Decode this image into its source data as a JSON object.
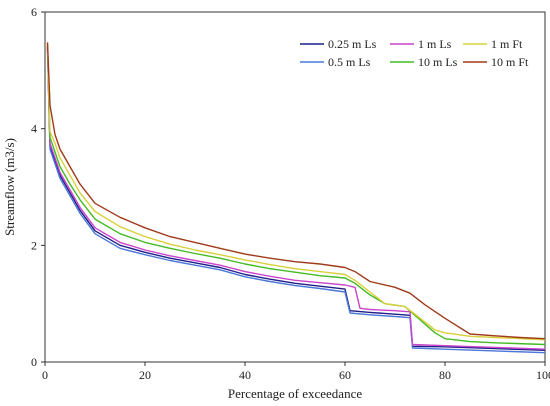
{
  "chart_data": {
    "type": "line",
    "title": "",
    "xlabel": "Percentage of exceedance",
    "ylabel": "Streamflow (m3/s)",
    "xlim": [
      0,
      100
    ],
    "ylim": [
      0,
      6
    ],
    "xticks": [
      0,
      20,
      40,
      60,
      80,
      100
    ],
    "yticks": [
      0,
      2,
      4,
      6
    ],
    "x_tick_labels": [
      "0",
      "20",
      "40",
      "60",
      "80",
      "100"
    ],
    "y_tick_labels": [
      "0",
      "2",
      "4",
      "6"
    ],
    "grid": false,
    "legend_position": "top-right",
    "series": [
      {
        "name": "0.25 m Ls",
        "color": "#1f1f8a",
        "points": [
          [
            0.5,
            5.4
          ],
          [
            1,
            3.7
          ],
          [
            2,
            3.45
          ],
          [
            3,
            3.2
          ],
          [
            5,
            2.9
          ],
          [
            7,
            2.6
          ],
          [
            10,
            2.25
          ],
          [
            15,
            2.0
          ],
          [
            20,
            1.88
          ],
          [
            25,
            1.78
          ],
          [
            30,
            1.7
          ],
          [
            35,
            1.62
          ],
          [
            40,
            1.5
          ],
          [
            45,
            1.42
          ],
          [
            50,
            1.35
          ],
          [
            55,
            1.3
          ],
          [
            60,
            1.25
          ],
          [
            61,
            0.88
          ],
          [
            65,
            0.85
          ],
          [
            70,
            0.82
          ],
          [
            73,
            0.8
          ],
          [
            73.5,
            0.27
          ],
          [
            80,
            0.26
          ],
          [
            90,
            0.23
          ],
          [
            100,
            0.2
          ]
        ]
      },
      {
        "name": "0.5 m Ls",
        "color": "#4a78d8",
        "points": [
          [
            0.5,
            5.35
          ],
          [
            1,
            3.65
          ],
          [
            2,
            3.4
          ],
          [
            3,
            3.15
          ],
          [
            5,
            2.85
          ],
          [
            7,
            2.55
          ],
          [
            10,
            2.2
          ],
          [
            15,
            1.95
          ],
          [
            20,
            1.84
          ],
          [
            25,
            1.74
          ],
          [
            30,
            1.66
          ],
          [
            35,
            1.58
          ],
          [
            40,
            1.46
          ],
          [
            45,
            1.38
          ],
          [
            50,
            1.31
          ],
          [
            55,
            1.26
          ],
          [
            60,
            1.2
          ],
          [
            61,
            0.84
          ],
          [
            65,
            0.81
          ],
          [
            70,
            0.78
          ],
          [
            73,
            0.76
          ],
          [
            73.5,
            0.24
          ],
          [
            80,
            0.22
          ],
          [
            90,
            0.19
          ],
          [
            100,
            0.16
          ]
        ]
      },
      {
        "name": "1 m Ls",
        "color": "#cc44cc",
        "points": [
          [
            0.5,
            5.4
          ],
          [
            1,
            3.75
          ],
          [
            2,
            3.5
          ],
          [
            3,
            3.25
          ],
          [
            5,
            2.95
          ],
          [
            7,
            2.65
          ],
          [
            10,
            2.3
          ],
          [
            15,
            2.05
          ],
          [
            20,
            1.92
          ],
          [
            25,
            1.82
          ],
          [
            30,
            1.74
          ],
          [
            35,
            1.66
          ],
          [
            40,
            1.55
          ],
          [
            45,
            1.47
          ],
          [
            50,
            1.4
          ],
          [
            55,
            1.36
          ],
          [
            60,
            1.32
          ],
          [
            62,
            1.28
          ],
          [
            63,
            0.92
          ],
          [
            65,
            0.9
          ],
          [
            70,
            0.88
          ],
          [
            73,
            0.86
          ],
          [
            73.5,
            0.3
          ],
          [
            80,
            0.28
          ],
          [
            90,
            0.25
          ],
          [
            100,
            0.22
          ]
        ]
      },
      {
        "name": "10 m Ls",
        "color": "#44bb22",
        "points": [
          [
            0.5,
            5.45
          ],
          [
            1,
            3.85
          ],
          [
            2,
            3.6
          ],
          [
            3,
            3.35
          ],
          [
            5,
            3.05
          ],
          [
            7,
            2.78
          ],
          [
            10,
            2.45
          ],
          [
            15,
            2.2
          ],
          [
            20,
            2.05
          ],
          [
            25,
            1.95
          ],
          [
            30,
            1.86
          ],
          [
            35,
            1.78
          ],
          [
            40,
            1.68
          ],
          [
            45,
            1.6
          ],
          [
            50,
            1.54
          ],
          [
            55,
            1.48
          ],
          [
            60,
            1.44
          ],
          [
            62,
            1.35
          ],
          [
            65,
            1.15
          ],
          [
            68,
            1.0
          ],
          [
            72,
            0.95
          ],
          [
            74,
            0.8
          ],
          [
            78,
            0.5
          ],
          [
            80,
            0.4
          ],
          [
            85,
            0.35
          ],
          [
            90,
            0.33
          ],
          [
            100,
            0.3
          ]
        ]
      },
      {
        "name": "1 m Ft",
        "color": "#d8d03a",
        "points": [
          [
            0.5,
            5.45
          ],
          [
            1,
            3.95
          ],
          [
            2,
            3.75
          ],
          [
            3,
            3.5
          ],
          [
            5,
            3.2
          ],
          [
            7,
            2.9
          ],
          [
            10,
            2.58
          ],
          [
            15,
            2.32
          ],
          [
            20,
            2.15
          ],
          [
            25,
            2.02
          ],
          [
            30,
            1.92
          ],
          [
            35,
            1.84
          ],
          [
            40,
            1.75
          ],
          [
            45,
            1.67
          ],
          [
            50,
            1.6
          ],
          [
            55,
            1.55
          ],
          [
            60,
            1.5
          ],
          [
            62,
            1.4
          ],
          [
            65,
            1.2
          ],
          [
            68,
            1.0
          ],
          [
            72,
            0.95
          ],
          [
            74,
            0.82
          ],
          [
            78,
            0.55
          ],
          [
            80,
            0.5
          ],
          [
            85,
            0.44
          ],
          [
            90,
            0.42
          ],
          [
            100,
            0.38
          ]
        ]
      },
      {
        "name": "10 m Ft",
        "color": "#a03a1a",
        "points": [
          [
            0.5,
            5.48
          ],
          [
            1,
            4.4
          ],
          [
            2,
            3.9
          ],
          [
            3,
            3.65
          ],
          [
            5,
            3.35
          ],
          [
            7,
            3.05
          ],
          [
            10,
            2.72
          ],
          [
            15,
            2.48
          ],
          [
            20,
            2.3
          ],
          [
            25,
            2.15
          ],
          [
            30,
            2.05
          ],
          [
            35,
            1.95
          ],
          [
            40,
            1.85
          ],
          [
            45,
            1.78
          ],
          [
            50,
            1.72
          ],
          [
            55,
            1.68
          ],
          [
            60,
            1.62
          ],
          [
            62,
            1.55
          ],
          [
            65,
            1.38
          ],
          [
            70,
            1.28
          ],
          [
            73,
            1.18
          ],
          [
            76,
            0.98
          ],
          [
            80,
            0.75
          ],
          [
            85,
            0.48
          ],
          [
            90,
            0.45
          ],
          [
            95,
            0.42
          ],
          [
            100,
            0.4
          ]
        ]
      }
    ]
  }
}
